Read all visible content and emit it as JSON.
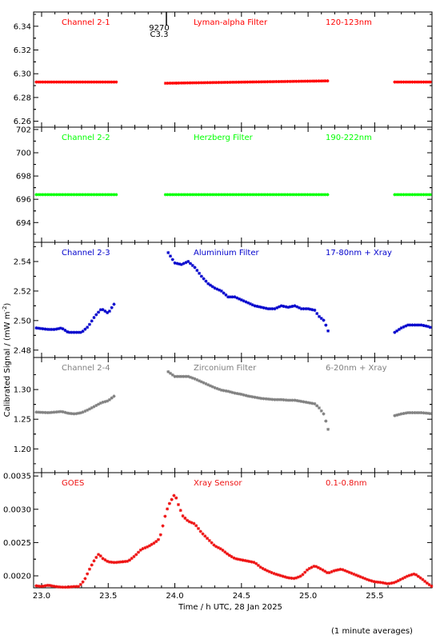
{
  "figure": {
    "ylabel": "Calibrated Signal / (mW m",
    "ylabel_exp": "-2",
    "ylabel_close": ")",
    "xlabel": "Time / h UTC, 28 Jan 2025",
    "footnote": "(1 minute averages)",
    "marker_label_1": "9270",
    "marker_label_2": "C3.3",
    "x_ticks": [
      "23.0",
      "23.5",
      "24.0",
      "24.5",
      "25.0",
      "25.5"
    ]
  },
  "chart_data": [
    {
      "type": "scatter",
      "title": "Channel 2-1",
      "filter": "Lyman-alpha Filter",
      "band": "120-123nm",
      "color": "#ff0000",
      "xlim": [
        22.94,
        25.93
      ],
      "ylim": [
        6.255,
        6.352
      ],
      "yticks": [
        "6.26",
        "6.28",
        "6.30",
        "6.32",
        "6.34"
      ],
      "segments": [
        {
          "x": [
            22.96,
            23.57
          ],
          "y": [
            6.293,
            6.293
          ]
        },
        {
          "x": [
            23.93,
            25.16
          ],
          "y": [
            6.292,
            6.294
          ]
        },
        {
          "x": [
            25.65,
            25.93
          ],
          "y": [
            6.293,
            6.293
          ]
        }
      ]
    },
    {
      "type": "scatter",
      "title": "Channel 2-2",
      "filter": "Herzberg Filter",
      "band": "190-222nm",
      "color": "#00ff00",
      "xlim": [
        22.94,
        25.93
      ],
      "ylim": [
        692.3,
        702.2
      ],
      "yticks": [
        "694",
        "696",
        "698",
        "700",
        "702"
      ],
      "segments": [
        {
          "x": [
            22.96,
            23.57
          ],
          "y": [
            696.4,
            696.4
          ]
        },
        {
          "x": [
            23.93,
            25.16
          ],
          "y": [
            696.4,
            696.4
          ]
        },
        {
          "x": [
            25.65,
            25.93
          ],
          "y": [
            696.4,
            696.4
          ]
        }
      ]
    },
    {
      "type": "scatter",
      "title": "Channel 2-3",
      "filter": "Aluminium Filter",
      "band": "17-80nm + Xray",
      "color": "#0000cc",
      "xlim": [
        22.94,
        25.93
      ],
      "ylim": [
        2.475,
        2.553
      ],
      "yticks": [
        "2.48",
        "2.50",
        "2.52",
        "2.54"
      ],
      "series": [
        {
          "x": [
            22.96,
            23.05,
            23.1,
            23.15,
            23.2,
            23.25,
            23.3,
            23.35,
            23.4,
            23.45,
            23.5,
            23.55
          ],
          "y": [
            2.495,
            2.494,
            2.494,
            2.495,
            2.492,
            2.492,
            2.492,
            2.496,
            2.503,
            2.508,
            2.505,
            2.512
          ]
        },
        {
          "x": [
            23.95,
            24.0,
            24.05,
            24.1,
            24.15,
            24.2,
            24.25,
            24.3,
            24.35,
            24.4,
            24.45,
            24.5,
            24.55,
            24.6,
            24.65,
            24.7,
            24.75,
            24.8,
            24.85,
            24.9,
            24.95,
            25.0,
            25.05,
            25.08,
            25.12,
            25.15
          ],
          "y": [
            2.546,
            2.539,
            2.538,
            2.54,
            2.536,
            2.53,
            2.525,
            2.522,
            2.52,
            2.516,
            2.516,
            2.514,
            2.512,
            2.51,
            2.509,
            2.508,
            2.508,
            2.51,
            2.509,
            2.51,
            2.508,
            2.508,
            2.507,
            2.503,
            2.5,
            2.493
          ]
        },
        {
          "x": [
            25.65,
            25.7,
            25.75,
            25.8,
            25.85,
            25.9,
            25.93
          ],
          "y": [
            2.492,
            2.495,
            2.497,
            2.497,
            2.497,
            2.496,
            2.495
          ]
        }
      ]
    },
    {
      "type": "scatter",
      "title": "Channel 2-4",
      "filter": "Zirconium Filter",
      "band": "6-20nm + Xray",
      "color": "#808080",
      "xlim": [
        22.94,
        25.93
      ],
      "ylim": [
        1.16,
        1.354
      ],
      "yticks": [
        "1.20",
        "1.25",
        "1.30"
      ],
      "series": [
        {
          "x": [
            22.96,
            23.05,
            23.1,
            23.15,
            23.2,
            23.25,
            23.3,
            23.35,
            23.4,
            23.45,
            23.5,
            23.55
          ],
          "y": [
            1.262,
            1.261,
            1.262,
            1.263,
            1.26,
            1.259,
            1.261,
            1.266,
            1.272,
            1.278,
            1.281,
            1.29
          ]
        },
        {
          "x": [
            23.95,
            24.0,
            24.05,
            24.1,
            24.15,
            24.2,
            24.25,
            24.3,
            24.35,
            24.4,
            24.45,
            24.5,
            24.55,
            24.6,
            24.65,
            24.7,
            24.75,
            24.8,
            24.85,
            24.9,
            24.95,
            25.0,
            25.05,
            25.08,
            25.12,
            25.15
          ],
          "y": [
            1.33,
            1.322,
            1.322,
            1.322,
            1.318,
            1.313,
            1.308,
            1.303,
            1.299,
            1.297,
            1.294,
            1.292,
            1.289,
            1.287,
            1.285,
            1.284,
            1.283,
            1.283,
            1.282,
            1.282,
            1.28,
            1.278,
            1.276,
            1.27,
            1.258,
            1.233
          ]
        },
        {
          "x": [
            25.65,
            25.7,
            25.75,
            25.8,
            25.85,
            25.9,
            25.93
          ],
          "y": [
            1.256,
            1.259,
            1.261,
            1.261,
            1.261,
            1.26,
            1.259
          ]
        }
      ]
    },
    {
      "type": "scatter",
      "title": "GOES",
      "filter": "Xray Sensor",
      "band": "0.1-0.8nm",
      "color": "#ee1111",
      "xlim": [
        22.94,
        25.93
      ],
      "ylim": [
        0.00182,
        0.00355
      ],
      "yticks": [
        "0.0020",
        "0.0025",
        "0.0030",
        "0.0035"
      ],
      "series": [
        {
          "x": [
            22.96,
            23.0,
            23.05,
            23.1,
            23.15,
            23.2,
            23.25,
            23.28,
            23.32,
            23.36,
            23.4,
            23.43,
            23.46,
            23.5,
            23.55,
            23.6,
            23.65,
            23.7,
            23.75,
            23.8,
            23.85,
            23.88,
            23.9,
            23.92,
            23.95,
            24.0,
            24.03,
            24.06,
            24.1,
            24.15,
            24.2,
            24.25,
            24.3,
            24.35,
            24.4,
            24.45,
            24.5,
            24.55,
            24.6,
            24.65,
            24.7,
            24.75,
            24.8,
            24.85,
            24.9,
            24.95,
            25.0,
            25.05,
            25.1,
            25.15,
            25.2,
            25.25,
            25.3,
            25.35,
            25.4,
            25.45,
            25.5,
            25.55,
            25.6,
            25.65,
            25.7,
            25.75,
            25.8,
            25.85,
            25.9,
            25.93
          ],
          "y": [
            0.00185,
            0.00184,
            0.00186,
            0.00184,
            0.00183,
            0.00183,
            0.00184,
            0.00184,
            0.00193,
            0.0021,
            0.00225,
            0.00233,
            0.00226,
            0.00221,
            0.0022,
            0.00221,
            0.00222,
            0.0023,
            0.0024,
            0.00244,
            0.0025,
            0.00255,
            0.00265,
            0.00285,
            0.00305,
            0.00323,
            0.00305,
            0.0029,
            0.00282,
            0.00278,
            0.00265,
            0.00255,
            0.00245,
            0.0024,
            0.00232,
            0.00226,
            0.00224,
            0.00222,
            0.0022,
            0.00212,
            0.00207,
            0.00203,
            0.002,
            0.00197,
            0.00196,
            0.002,
            0.0021,
            0.00215,
            0.0021,
            0.00204,
            0.00208,
            0.0021,
            0.00206,
            0.00202,
            0.00198,
            0.00194,
            0.00191,
            0.0019,
            0.00188,
            0.0019,
            0.00195,
            0.002,
            0.00203,
            0.00196,
            0.00188,
            0.00184
          ]
        }
      ]
    }
  ]
}
